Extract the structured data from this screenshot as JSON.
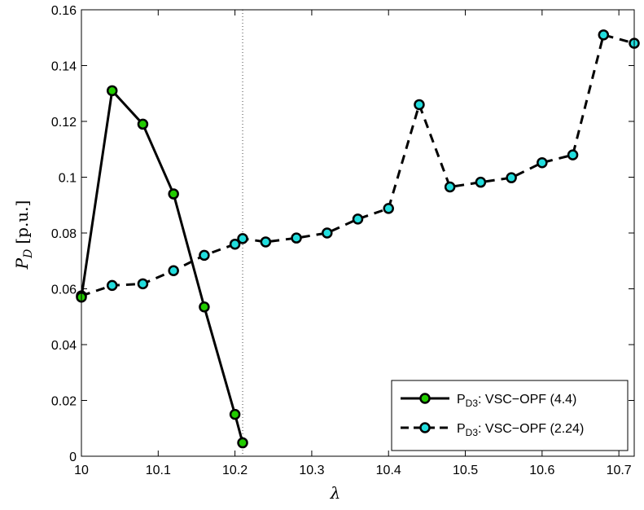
{
  "chart_data": {
    "type": "line",
    "xlabel_main": "λ",
    "ylabel_main": "P",
    "ylabel_sub": "D",
    "ylabel_unit": "[p.u.]",
    "xlim": [
      10,
      10.72
    ],
    "ylim": [
      0,
      0.16
    ],
    "x_ticks": [
      10,
      10.1,
      10.2,
      10.3,
      10.4,
      10.5,
      10.6,
      10.7
    ],
    "x_tick_labels": [
      "10",
      "10.1",
      "10.2",
      "10.3",
      "10.4",
      "10.5",
      "10.6",
      "10.7"
    ],
    "y_ticks": [
      0,
      0.02,
      0.04,
      0.06,
      0.08,
      0.1,
      0.12,
      0.14,
      0.16
    ],
    "y_tick_labels": [
      "0",
      "0.02",
      "0.04",
      "0.06",
      "0.08",
      "0.1",
      "0.12",
      "0.14",
      "0.16"
    ],
    "grid": false,
    "reference_line_x": 10.21,
    "legend_position": "bottom-right",
    "series": [
      {
        "legend_main": "P",
        "legend_sub": "D3",
        "legend_rest": ": VSC−OPF (4.4)",
        "line_style": "solid",
        "marker_color": "#22cc00",
        "x": [
          10,
          10.04,
          10.08,
          10.12,
          10.16,
          10.2,
          10.21
        ],
        "y": [
          0.057,
          0.131,
          0.119,
          0.094,
          0.0535,
          0.015,
          0.0048
        ]
      },
      {
        "legend_main": "P",
        "legend_sub": "D3",
        "legend_rest": ": VSC−OPF (2.24)",
        "line_style": "dashed",
        "marker_color": "#22dddd",
        "x": [
          10,
          10.04,
          10.08,
          10.12,
          10.16,
          10.2,
          10.21,
          10.24,
          10.28,
          10.32,
          10.36,
          10.4,
          10.44,
          10.48,
          10.52,
          10.56,
          10.6,
          10.64,
          10.68,
          10.72
        ],
        "y": [
          0.0575,
          0.0612,
          0.0618,
          0.0665,
          0.072,
          0.076,
          0.078,
          0.0768,
          0.0782,
          0.08,
          0.085,
          0.0888,
          0.126,
          0.0965,
          0.0982,
          0.0998,
          0.1052,
          0.108,
          0.151,
          0.148
        ]
      }
    ]
  }
}
